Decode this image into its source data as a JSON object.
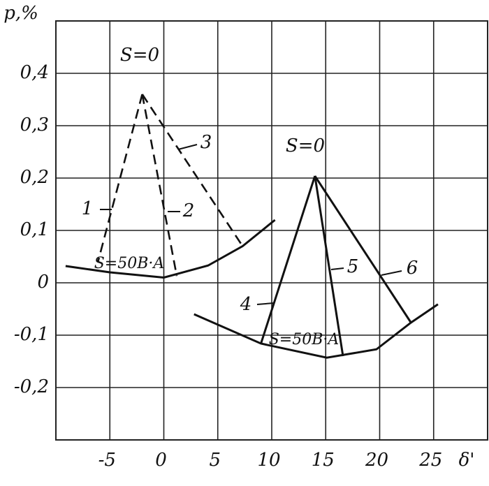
{
  "chart_data": {
    "type": "line",
    "x_label": "δ'",
    "y_label": "p,%",
    "xlim": [
      -10,
      30
    ],
    "ylim": [
      -0.3,
      0.5
    ],
    "xticks": [
      -5,
      0,
      5,
      10,
      15,
      20,
      25
    ],
    "yticks": [
      {
        "value": 0.4,
        "label": "0,4"
      },
      {
        "value": 0.3,
        "label": "0,3"
      },
      {
        "value": 0.2,
        "label": "0,2"
      },
      {
        "value": 0.1,
        "label": "0,1"
      },
      0,
      {
        "value": -0.1,
        "label": "-0,1"
      },
      {
        "value": -0.2,
        "label": "-0,2"
      }
    ],
    "grid": true,
    "annotations": [
      "S=0",
      "S=0"
    ],
    "series": [
      {
        "name": "1",
        "color": "#111",
        "dash": true,
        "x": [
          -2,
          -6.1
        ],
        "values": [
          0.36,
          0.04
        ]
      },
      {
        "name": "2",
        "color": "#111",
        "dash": true,
        "x": [
          -2,
          1.2
        ],
        "values": [
          0.36,
          0.013
        ]
      },
      {
        "name": "3",
        "color": "#111",
        "dash": true,
        "x": [
          -2,
          7.3
        ],
        "values": [
          0.36,
          0.07
        ]
      },
      {
        "name": "S=50B·A",
        "color": "#111",
        "dash": false,
        "x": [
          -9.1,
          -5,
          0,
          4.1,
          7.3,
          10.3
        ],
        "values": [
          0.032,
          0.02,
          0.01,
          0.033,
          0.07,
          0.12
        ]
      },
      {
        "name": "4",
        "color": "#111",
        "dash": false,
        "x": [
          14,
          9
        ],
        "values": [
          0.204,
          -0.116
        ]
      },
      {
        "name": "5",
        "color": "#111",
        "dash": false,
        "x": [
          14,
          16.6
        ],
        "values": [
          0.204,
          -0.14
        ]
      },
      {
        "name": "6",
        "color": "#111",
        "dash": false,
        "x": [
          14,
          22.9
        ],
        "values": [
          0.204,
          -0.076
        ]
      },
      {
        "name": "S=50B·A",
        "color": "#111",
        "dash": false,
        "x": [
          2.8,
          9,
          15.1,
          19.7,
          22.9,
          25.4
        ],
        "values": [
          -0.06,
          -0.116,
          -0.143,
          -0.127,
          -0.076,
          -0.041
        ]
      }
    ]
  }
}
